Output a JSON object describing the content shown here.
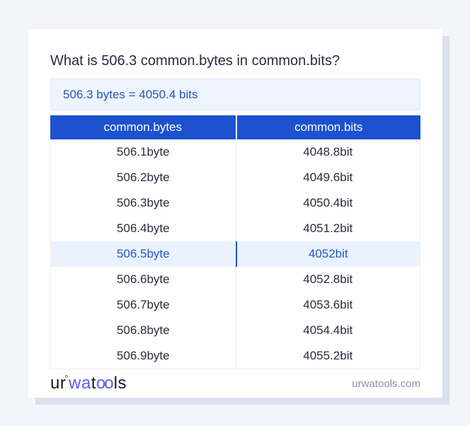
{
  "page": {
    "title": "What is 506.3 common.bytes in common.bits?",
    "answer": "506.3 bytes = 4050.4 bits"
  },
  "table": {
    "headers": [
      "common.bytes",
      "common.bits"
    ],
    "rows": [
      {
        "bytes": "506.1byte",
        "bits": "4048.8bit",
        "highlight": false
      },
      {
        "bytes": "506.2byte",
        "bits": "4049.6bit",
        "highlight": false
      },
      {
        "bytes": "506.3byte",
        "bits": "4050.4bit",
        "highlight": false
      },
      {
        "bytes": "506.4byte",
        "bits": "4051.2bit",
        "highlight": false
      },
      {
        "bytes": "506.5byte",
        "bits": "4052bit",
        "highlight": true
      },
      {
        "bytes": "506.6byte",
        "bits": "4052.8bit",
        "highlight": false
      },
      {
        "bytes": "506.7byte",
        "bits": "4053.6bit",
        "highlight": false
      },
      {
        "bytes": "506.8byte",
        "bits": "4054.4bit",
        "highlight": false
      },
      {
        "bytes": "506.9byte",
        "bits": "4055.2bit",
        "highlight": false
      }
    ]
  },
  "footer": {
    "logo": {
      "ur": "ur",
      "mark": "°",
      "wa": "wa",
      "t": "t",
      "oo": "oo",
      "ls": "ls"
    },
    "domain": "urwatools.com"
  },
  "colors": {
    "page_background": "#f3f5fa",
    "card_background": "#ffffff",
    "card_shadow": "#dbe0ee",
    "header_blue": "#1d52ce",
    "answer_background": "#edf4fd",
    "answer_text": "#2457b5",
    "highlight_row_background": "#e9f2fd",
    "highlight_row_text": "#2357c4",
    "body_text": "#272d3c",
    "logo_blue": "#5a5fe8",
    "footer_domain_gray": "#8d929e"
  }
}
